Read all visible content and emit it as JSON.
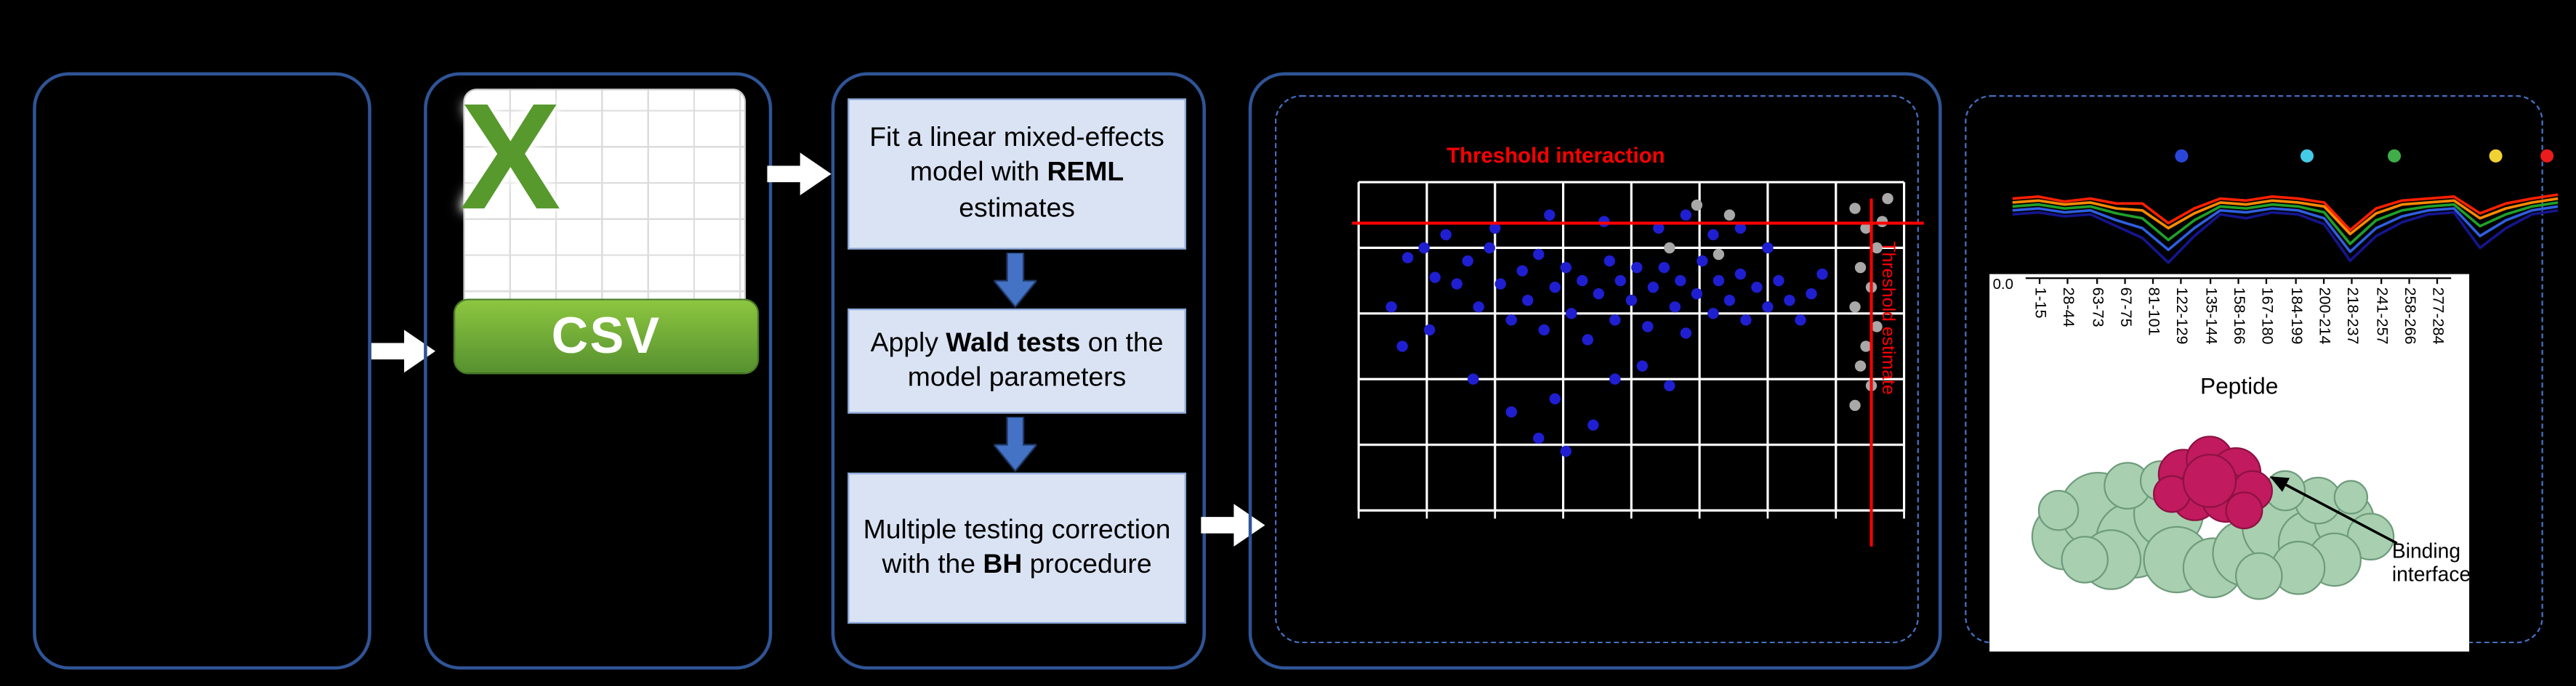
{
  "colors": {
    "background": "#000000",
    "panel_border": "#2f5496",
    "dashed_border": "#4472c4",
    "step_box_fill": "#dae3f3",
    "step_box_border": "#8eaadb",
    "flow_arrow": "#ffffff",
    "down_arrow_fill": "#4472c4",
    "csv_green": "#6fae3e",
    "threshold_red": "#ff0000",
    "scatter_point_blue": "#1f1fd1",
    "scatter_point_grey": "#a8a8a8",
    "grid_line": "#ffffff",
    "protein_green": "#a8d0b0",
    "binding_magenta": "#c21a5e"
  },
  "pipeline": {
    "csv_x": "X",
    "csv_label": "CSV",
    "steps": [
      {
        "pre": "Fit a linear mixed-effects model with ",
        "bold": "REML",
        "post": " estimates"
      },
      {
        "pre": "Apply ",
        "bold": "Wald tests",
        "post": " on the model parameters"
      },
      {
        "pre": "Multiple testing correction\nwith the ",
        "bold": "BH",
        "post": " procedure"
      }
    ]
  },
  "scatter_panel": {
    "title": "Threshold interaction",
    "side_label": "Threshold estimate"
  },
  "peptide_panel": {
    "y_tick": "0.0",
    "x_axis_title": "Peptide",
    "annotation": "Binding interface"
  },
  "chart_data": [
    {
      "type": "scatter",
      "title": "Threshold interaction",
      "axes": {
        "x_range": [
          0,
          1
        ],
        "y_range": [
          0,
          1
        ],
        "grid_cols": 8,
        "grid_rows": 5
      },
      "thresholds": {
        "horizontal_y": 0.875,
        "vertical_x": 0.94,
        "color": "#ff0000"
      },
      "series": [
        {
          "name": "interaction-points",
          "color": "#1f1fd1",
          "points": [
            [
              0.06,
              0.62
            ],
            [
              0.08,
              0.5
            ],
            [
              0.09,
              0.77
            ],
            [
              0.12,
              0.8
            ],
            [
              0.13,
              0.55
            ],
            [
              0.14,
              0.71
            ],
            [
              0.16,
              0.84
            ],
            [
              0.18,
              0.69
            ],
            [
              0.2,
              0.76
            ],
            [
              0.21,
              0.4
            ],
            [
              0.22,
              0.62
            ],
            [
              0.24,
              0.8
            ],
            [
              0.25,
              0.86
            ],
            [
              0.26,
              0.69
            ],
            [
              0.28,
              0.3
            ],
            [
              0.28,
              0.58
            ],
            [
              0.3,
              0.73
            ],
            [
              0.31,
              0.64
            ],
            [
              0.33,
              0.22
            ],
            [
              0.33,
              0.78
            ],
            [
              0.34,
              0.55
            ],
            [
              0.35,
              0.9
            ],
            [
              0.36,
              0.34
            ],
            [
              0.36,
              0.68
            ],
            [
              0.38,
              0.18
            ],
            [
              0.38,
              0.74
            ],
            [
              0.39,
              0.6
            ],
            [
              0.41,
              0.7
            ],
            [
              0.42,
              0.52
            ],
            [
              0.43,
              0.26
            ],
            [
              0.44,
              0.66
            ],
            [
              0.45,
              0.88
            ],
            [
              0.46,
              0.76
            ],
            [
              0.47,
              0.4
            ],
            [
              0.47,
              0.58
            ],
            [
              0.48,
              0.7
            ],
            [
              0.5,
              0.64
            ],
            [
              0.51,
              0.74
            ],
            [
              0.52,
              0.44
            ],
            [
              0.53,
              0.56
            ],
            [
              0.54,
              0.68
            ],
            [
              0.55,
              0.86
            ],
            [
              0.56,
              0.74
            ],
            [
              0.57,
              0.38
            ],
            [
              0.58,
              0.62
            ],
            [
              0.59,
              0.7
            ],
            [
              0.6,
              0.54
            ],
            [
              0.6,
              0.9
            ],
            [
              0.62,
              0.66
            ],
            [
              0.63,
              0.76
            ],
            [
              0.65,
              0.6
            ],
            [
              0.65,
              0.84
            ],
            [
              0.66,
              0.7
            ],
            [
              0.68,
              0.64
            ],
            [
              0.7,
              0.72
            ],
            [
              0.7,
              0.86
            ],
            [
              0.71,
              0.58
            ],
            [
              0.73,
              0.68
            ],
            [
              0.75,
              0.62
            ],
            [
              0.75,
              0.8
            ],
            [
              0.77,
              0.7
            ],
            [
              0.79,
              0.64
            ],
            [
              0.81,
              0.58
            ],
            [
              0.83,
              0.66
            ],
            [
              0.85,
              0.72
            ]
          ]
        },
        {
          "name": "reference-points",
          "color": "#a8a8a8",
          "points": [
            [
              0.91,
              0.92
            ],
            [
              0.93,
              0.86
            ],
            [
              0.95,
              0.8
            ],
            [
              0.92,
              0.74
            ],
            [
              0.94,
              0.68
            ],
            [
              0.91,
              0.62
            ],
            [
              0.95,
              0.56
            ],
            [
              0.93,
              0.5
            ],
            [
              0.92,
              0.44
            ],
            [
              0.94,
              0.38
            ],
            [
              0.91,
              0.32
            ],
            [
              0.97,
              0.95
            ],
            [
              0.96,
              0.88
            ],
            [
              0.62,
              0.93
            ],
            [
              0.68,
              0.9
            ],
            [
              0.57,
              0.8
            ],
            [
              0.66,
              0.78
            ]
          ]
        }
      ]
    },
    {
      "type": "line",
      "xlabel": "Peptide",
      "x_categories": [
        "1-15",
        "28-44",
        "63-73",
        "67-75",
        "81-101",
        "122-129",
        "135-144",
        "158-166",
        "167-180",
        "184-199",
        "200-214",
        "218-237",
        "241-257",
        "258-266",
        "277-284"
      ],
      "y_tick_labels": [
        "0.0"
      ],
      "series": [
        {
          "name": "profile-red",
          "color": "#ff2000",
          "values": [
            0.3,
            0.28,
            0.33,
            0.3,
            0.35,
            0.35,
            0.55,
            0.4,
            0.3,
            0.32,
            0.28,
            0.3,
            0.34,
            0.62,
            0.4,
            0.32,
            0.3,
            0.28,
            0.45,
            0.35,
            0.3,
            0.26
          ]
        },
        {
          "name": "profile-orange",
          "color": "#ff8a00",
          "values": [
            0.34,
            0.32,
            0.36,
            0.34,
            0.4,
            0.42,
            0.6,
            0.45,
            0.34,
            0.36,
            0.32,
            0.34,
            0.38,
            0.66,
            0.45,
            0.36,
            0.34,
            0.32,
            0.5,
            0.4,
            0.34,
            0.3
          ]
        },
        {
          "name": "profile-green",
          "color": "#1fa02a",
          "values": [
            0.38,
            0.36,
            0.4,
            0.38,
            0.45,
            0.5,
            0.72,
            0.52,
            0.38,
            0.4,
            0.36,
            0.38,
            0.44,
            0.76,
            0.52,
            0.42,
            0.38,
            0.36,
            0.58,
            0.46,
            0.38,
            0.34
          ]
        },
        {
          "name": "profile-royalblue",
          "color": "#2e5fe0",
          "values": [
            0.42,
            0.4,
            0.44,
            0.42,
            0.52,
            0.6,
            0.82,
            0.6,
            0.42,
            0.44,
            0.4,
            0.42,
            0.5,
            0.84,
            0.6,
            0.48,
            0.42,
            0.4,
            0.68,
            0.52,
            0.42,
            0.38
          ]
        },
        {
          "name": "profile-navy",
          "color": "#15158e",
          "values": [
            0.46,
            0.44,
            0.48,
            0.46,
            0.58,
            0.7,
            0.95,
            0.68,
            0.46,
            0.5,
            0.44,
            0.46,
            0.56,
            0.93,
            0.68,
            0.54,
            0.46,
            0.44,
            0.8,
            0.6,
            0.46,
            0.42
          ]
        }
      ],
      "markers": [
        {
          "color": "#2a46d8",
          "x": 0.31
        },
        {
          "color": "#44cbe8",
          "x": 0.54
        },
        {
          "color": "#3fae49",
          "x": 0.7
        },
        {
          "color": "#f2d233",
          "x": 0.886
        },
        {
          "color": "#ea1c1c",
          "x": 0.98
        }
      ]
    }
  ]
}
